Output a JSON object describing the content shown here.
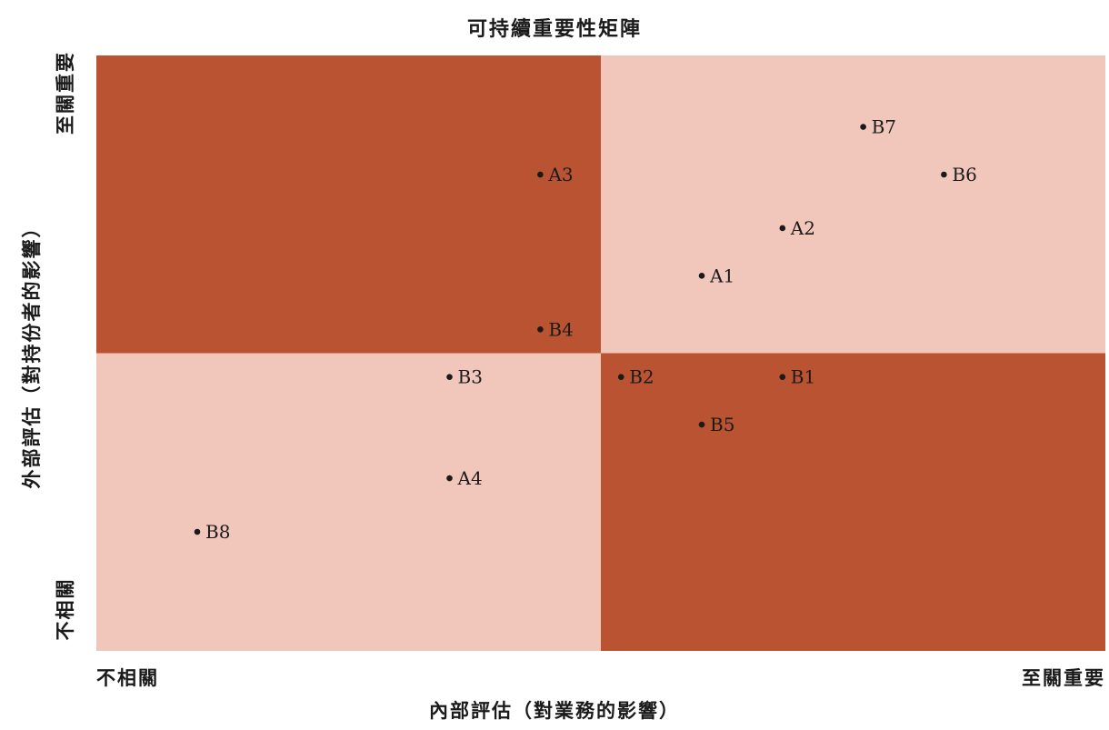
{
  "chart_data": {
    "type": "scatter",
    "title": "可持續重要性矩陣",
    "xlabel": "內部評估（對業務的影響）",
    "ylabel": "外部評估（對持份者的影響）",
    "x_tick_labels": [
      "不相關",
      "至關重要"
    ],
    "y_tick_labels": [
      "不相關",
      "至關重要"
    ],
    "xlim": [
      0,
      10
    ],
    "ylim": [
      0,
      10
    ],
    "grid": false,
    "quadrant_colors": {
      "top_left": "#b95331",
      "top_right": "#f2c7bb",
      "bottom_left": "#f2c7bb",
      "bottom_right": "#b95331"
    },
    "points": [
      {
        "label": "A1",
        "x": 6.0,
        "y": 6.3
      },
      {
        "label": "A2",
        "x": 6.8,
        "y": 7.1
      },
      {
        "label": "A3",
        "x": 4.4,
        "y": 8.0
      },
      {
        "label": "A4",
        "x": 3.5,
        "y": 2.9
      },
      {
        "label": "B1",
        "x": 6.8,
        "y": 4.6
      },
      {
        "label": "B2",
        "x": 5.2,
        "y": 4.6
      },
      {
        "label": "B3",
        "x": 3.5,
        "y": 4.6
      },
      {
        "label": "B4",
        "x": 4.4,
        "y": 5.4
      },
      {
        "label": "B5",
        "x": 6.0,
        "y": 3.8
      },
      {
        "label": "B6",
        "x": 8.4,
        "y": 8.0
      },
      {
        "label": "B7",
        "x": 7.6,
        "y": 8.8
      },
      {
        "label": "B8",
        "x": 1.0,
        "y": 2.0
      }
    ]
  }
}
